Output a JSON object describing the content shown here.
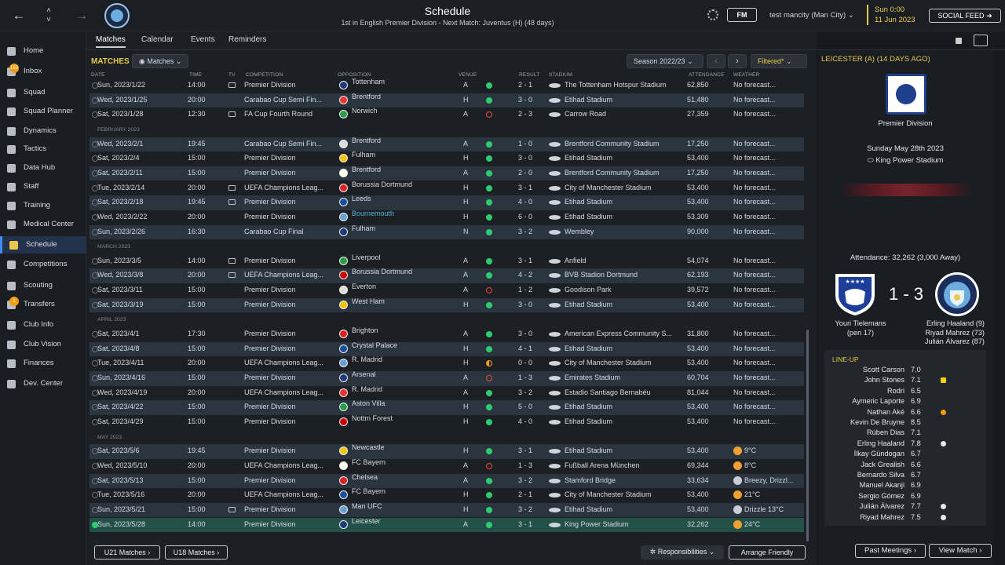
{
  "header": {
    "title": "Schedule",
    "subtitle": "1st in English Premier Division - Next Match: Juventus (H) (48 days)",
    "fm_badge": "FM",
    "user": "test mancity (Man City)",
    "time": "Sun 0:00",
    "date": "11 Jun 2023",
    "social_feed": "SOCIAL FEED"
  },
  "sidebar": {
    "items": [
      {
        "label": "Home"
      },
      {
        "label": "Inbox",
        "badge": "150"
      },
      {
        "label": "Squad"
      },
      {
        "label": "Squad Planner"
      },
      {
        "label": "Dynamics"
      },
      {
        "label": "Tactics"
      },
      {
        "label": "Data Hub"
      },
      {
        "label": "Staff"
      },
      {
        "label": "Training"
      },
      {
        "label": "Medical Center"
      },
      {
        "label": "Schedule"
      },
      {
        "label": "Competitions"
      },
      {
        "label": "Scouting"
      },
      {
        "label": "Transfers",
        "badge": "1"
      },
      {
        "label": "Club Info"
      },
      {
        "label": "Club Vision"
      },
      {
        "label": "Finances"
      },
      {
        "label": "Dev. Center"
      }
    ]
  },
  "tabs": [
    "Matches",
    "Calendar",
    "Events",
    "Reminders"
  ],
  "toolbar": {
    "section": "MATCHES",
    "matches_dropdown": "Matches",
    "season": "Season 2022/23",
    "filter": "Filtered*"
  },
  "columns": [
    "DATE",
    "TIME",
    "TV",
    "COMPETITION",
    "OPPOSITION",
    "VENUE",
    "RESULT",
    "STADIUM",
    "ATTENDANCE",
    "WEATHER"
  ],
  "rows": [
    {
      "date": "Sun, 2023/1/22",
      "time": "14:00",
      "tv": true,
      "comp": "Premier Division",
      "opp": "Tottenham",
      "venue": "A",
      "res": "w",
      "score": "2 - 1",
      "stadium": "The Tottenham Hotspur Stadium",
      "att": "62,850",
      "weather": "No forecast..."
    },
    {
      "date": "Wed, 2023/1/25",
      "time": "20:00",
      "tv": false,
      "comp": "Carabao Cup Semi Fin...",
      "opp": "Brentford",
      "venue": "H",
      "res": "w",
      "score": "3 - 0",
      "stadium": "Etihad Stadium",
      "att": "51,480",
      "weather": "No forecast..."
    },
    {
      "date": "Sat, 2023/1/28",
      "time": "12:30",
      "tv": true,
      "comp": "FA Cup Fourth Round",
      "opp": "Norwich",
      "venue": "A",
      "res": "l",
      "score": "2 - 3",
      "stadium": "Carrow Road",
      "att": "27,359",
      "weather": "No forecast..."
    },
    {
      "month": "FEBRUARY 2023"
    },
    {
      "date": "Wed, 2023/2/1",
      "time": "19:45",
      "tv": false,
      "comp": "Carabao Cup Semi Fin...",
      "opp": "Brentford",
      "venue": "A",
      "res": "w",
      "score": "1 - 0",
      "stadium": "Brentford Community Stadium",
      "att": "17,250",
      "weather": "No forecast..."
    },
    {
      "date": "Sat, 2023/2/4",
      "time": "15:00",
      "tv": false,
      "comp": "Premier Division",
      "opp": "Fulham",
      "venue": "H",
      "res": "w",
      "score": "3 - 0",
      "stadium": "Etihad Stadium",
      "att": "53,400",
      "weather": "No forecast..."
    },
    {
      "date": "Sat, 2023/2/11",
      "time": "15:00",
      "tv": false,
      "comp": "Premier Division",
      "opp": "Brentford",
      "venue": "A",
      "res": "w",
      "score": "2 - 0",
      "stadium": "Brentford Community Stadium",
      "att": "17,250",
      "weather": "No forecast..."
    },
    {
      "date": "Tue, 2023/2/14",
      "time": "20:00",
      "tv": true,
      "comp": "UEFA Champions Leag...",
      "opp": "Borussia Dortmund",
      "venue": "H",
      "res": "w",
      "score": "3 - 1",
      "stadium": "City of Manchester Stadium",
      "att": "53,400",
      "weather": "No forecast..."
    },
    {
      "date": "Sat, 2023/2/18",
      "time": "19:45",
      "tv": true,
      "comp": "Premier Division",
      "opp": "Leeds",
      "venue": "H",
      "res": "w",
      "score": "4 - 0",
      "stadium": "Etihad Stadium",
      "att": "53,400",
      "weather": "No forecast..."
    },
    {
      "date": "Wed, 2023/2/22",
      "time": "20:00",
      "tv": false,
      "comp": "Premier Division",
      "opp": "Bournemouth",
      "oppLink": true,
      "venue": "H",
      "res": "w",
      "score": "6 - 0",
      "stadium": "Etihad Stadium",
      "att": "53,309",
      "weather": "No forecast..."
    },
    {
      "date": "Sun, 2023/2/26",
      "time": "16:30",
      "tv": false,
      "comp": "Carabao Cup Final",
      "opp": "Fulham",
      "venue": "N",
      "res": "w",
      "score": "3 - 2",
      "stadium": "Wembley",
      "att": "90,000",
      "weather": "No forecast..."
    },
    {
      "month": "MARCH 2023"
    },
    {
      "date": "Sun, 2023/3/5",
      "time": "14:00",
      "tv": true,
      "comp": "Premier Division",
      "opp": "Liverpool",
      "venue": "A",
      "res": "w",
      "score": "3 - 1",
      "stadium": "Anfield",
      "att": "54,074",
      "weather": "No forecast..."
    },
    {
      "date": "Wed, 2023/3/8",
      "time": "20:00",
      "tv": true,
      "comp": "UEFA Champions Leag...",
      "opp": "Borussia Dortmund",
      "venue": "A",
      "res": "w",
      "score": "4 - 2",
      "stadium": "BVB Stadion Dortmund",
      "att": "62,193",
      "weather": "No forecast..."
    },
    {
      "date": "Sat, 2023/3/11",
      "time": "15:00",
      "tv": false,
      "comp": "Premier Division",
      "opp": "Everton",
      "venue": "A",
      "res": "l",
      "score": "1 - 2",
      "stadium": "Goodison Park",
      "att": "39,572",
      "weather": "No forecast..."
    },
    {
      "date": "Sat, 2023/3/19",
      "time": "15:00",
      "tv": false,
      "comp": "Premier Division",
      "opp": "West Ham",
      "venue": "H",
      "res": "w",
      "score": "3 - 0",
      "stadium": "Etihad Stadium",
      "att": "53,400",
      "weather": "No forecast..."
    },
    {
      "month": "APRIL 2023"
    },
    {
      "date": "Sat, 2023/4/1",
      "time": "17:30",
      "tv": false,
      "comp": "Premier Division",
      "opp": "Brighton",
      "venue": "A",
      "res": "w",
      "score": "3 - 0",
      "stadium": "American Express Community S...",
      "att": "31,800",
      "weather": "No forecast..."
    },
    {
      "date": "Sat, 2023/4/8",
      "time": "15:00",
      "tv": false,
      "comp": "Premier Division",
      "opp": "Crystal Palace",
      "venue": "H",
      "res": "w",
      "score": "4 - 1",
      "stadium": "Etihad Stadium",
      "att": "53,400",
      "weather": "No forecast..."
    },
    {
      "date": "Tue, 2023/4/11",
      "time": "20:00",
      "tv": false,
      "comp": "UEFA Champions Leag...",
      "opp": "R. Madrid",
      "venue": "H",
      "res": "d",
      "score": "0 - 0",
      "stadium": "City of Manchester Stadium",
      "att": "53,400",
      "weather": "No forecast..."
    },
    {
      "date": "Sun, 2023/4/16",
      "time": "15:00",
      "tv": false,
      "comp": "Premier Division",
      "opp": "Arsenal",
      "venue": "A",
      "res": "l",
      "score": "1 - 3",
      "stadium": "Emirates Stadium",
      "att": "60,704",
      "weather": "No forecast..."
    },
    {
      "date": "Wed, 2023/4/19",
      "time": "20:00",
      "tv": false,
      "comp": "UEFA Champions Leag...",
      "opp": "R. Madrid",
      "venue": "A",
      "res": "w",
      "score": "3 - 2",
      "stadium": "Estadio Santiago Bernabéu",
      "att": "81,044",
      "weather": "No forecast..."
    },
    {
      "date": "Sat, 2023/4/22",
      "time": "15:00",
      "tv": false,
      "comp": "Premier Division",
      "opp": "Aston Villa",
      "venue": "H",
      "res": "w",
      "score": "5 - 0",
      "stadium": "Etihad Stadium",
      "att": "53,400",
      "weather": "No forecast..."
    },
    {
      "date": "Sat, 2023/4/29",
      "time": "15:00",
      "tv": false,
      "comp": "Premier Division",
      "opp": "Nottm Forest",
      "venue": "H",
      "res": "w",
      "score": "4 - 0",
      "stadium": "Etihad Stadium",
      "att": "53,400",
      "weather": "No forecast..."
    },
    {
      "month": "MAY 2023"
    },
    {
      "date": "Sat, 2023/5/6",
      "time": "19:45",
      "tv": false,
      "comp": "Premier Division",
      "opp": "Newcastle",
      "venue": "H",
      "res": "w",
      "score": "3 - 1",
      "stadium": "Etihad Stadium",
      "att": "53,400",
      "weather": "9°C",
      "sun": true
    },
    {
      "date": "Wed, 2023/5/10",
      "time": "20:00",
      "tv": false,
      "comp": "UEFA Champions Leag...",
      "opp": "FC Bayern",
      "venue": "A",
      "res": "l",
      "score": "1 - 3",
      "stadium": "Fußball Arena München",
      "att": "69,344",
      "weather": "8°C",
      "sun": true
    },
    {
      "date": "Sat, 2023/5/13",
      "time": "15:00",
      "tv": false,
      "comp": "Premier Division",
      "opp": "Chelsea",
      "venue": "A",
      "res": "w",
      "score": "3 - 2",
      "stadium": "Stamford Bridge",
      "att": "33,634",
      "weather": "Breezy, Drizzl...",
      "sun": false
    },
    {
      "date": "Tue, 2023/5/16",
      "time": "20:00",
      "tv": false,
      "comp": "UEFA Champions Leag...",
      "opp": "FC Bayern",
      "venue": "H",
      "res": "w",
      "score": "2 - 1",
      "stadium": "City of Manchester Stadium",
      "att": "53,400",
      "weather": "21°C",
      "sun": true
    },
    {
      "date": "Sun, 2023/5/21",
      "time": "15:00",
      "tv": true,
      "comp": "Premier Division",
      "opp": "Man UFC",
      "venue": "H",
      "res": "w",
      "score": "3 - 2",
      "stadium": "Etihad Stadium",
      "att": "53,400",
      "weather": "Drizzle 13°C",
      "sun": false
    },
    {
      "date": "Sun, 2023/5/28",
      "time": "14:00",
      "tv": false,
      "comp": "Premier Division",
      "opp": "Leicester",
      "venue": "A",
      "res": "w",
      "score": "3 - 1",
      "stadium": "King Power Stadium",
      "att": "32,262",
      "weather": "24°C",
      "sun": true,
      "selected": true
    }
  ],
  "bottom": {
    "u21": "U21 Matches",
    "u18": "U18 Matches",
    "responsibilities": "Responsibilities",
    "arrange": "Arrange Friendly"
  },
  "panel": {
    "heading": "LEICESTER (A) (14 DAYS AGO)",
    "competition": "Premier Division",
    "match_date": "Sunday May 28th 2023",
    "stadium": "King Power Stadium",
    "attendance": "Attendance: 32,262 (3,000 Away)",
    "score": "1 - 3",
    "home_scorers": [
      "Youri Tielemans",
      "(pen 17)"
    ],
    "away_scorers": [
      "Erling Haaland (9)",
      "Riyad Mahrez (73)",
      "Julián Álvarez (87)"
    ],
    "lineup_title": "LINE-UP",
    "lineup": [
      {
        "name": "Scott Carson",
        "rating": "7.0",
        "ev": ""
      },
      {
        "name": "John Stones",
        "rating": "7.1",
        "ev": "yellow"
      },
      {
        "name": "Rodri",
        "rating": "6.5",
        "ev": ""
      },
      {
        "name": "Aymeric Laporte",
        "rating": "6.9",
        "ev": ""
      },
      {
        "name": "Nathan Aké",
        "rating": "6.6",
        "ev": "sub"
      },
      {
        "name": "Kevin De Bruyne",
        "rating": "8.5",
        "ev": ""
      },
      {
        "name": "Rúben Dias",
        "rating": "7.1",
        "ev": ""
      },
      {
        "name": "Erling Haaland",
        "rating": "7.8",
        "ev": "goal"
      },
      {
        "name": "İlkay Gündogan",
        "rating": "6.7",
        "ev": ""
      },
      {
        "name": "Jack Grealish",
        "rating": "6.6",
        "ev": ""
      },
      {
        "name": "Bernardo Silva",
        "rating": "6.7",
        "ev": ""
      },
      {
        "name": "Manuel Akanji",
        "rating": "6.9",
        "ev": ""
      },
      {
        "name": "Sergio Gómez",
        "rating": "6.9",
        "ev": ""
      },
      {
        "name": "Julián Álvarez",
        "rating": "7.7",
        "ev": "goal"
      },
      {
        "name": "Riyad Mahrez",
        "rating": "7.5",
        "ev": "goal"
      }
    ],
    "past_meetings": "Past Meetings",
    "view_match": "View Match"
  },
  "colors": {
    "accent": "#e9c84a",
    "win": "#2ecc71",
    "loss": "#e74c3c",
    "draw": "#f39c12",
    "selected_row": "#24504a"
  }
}
